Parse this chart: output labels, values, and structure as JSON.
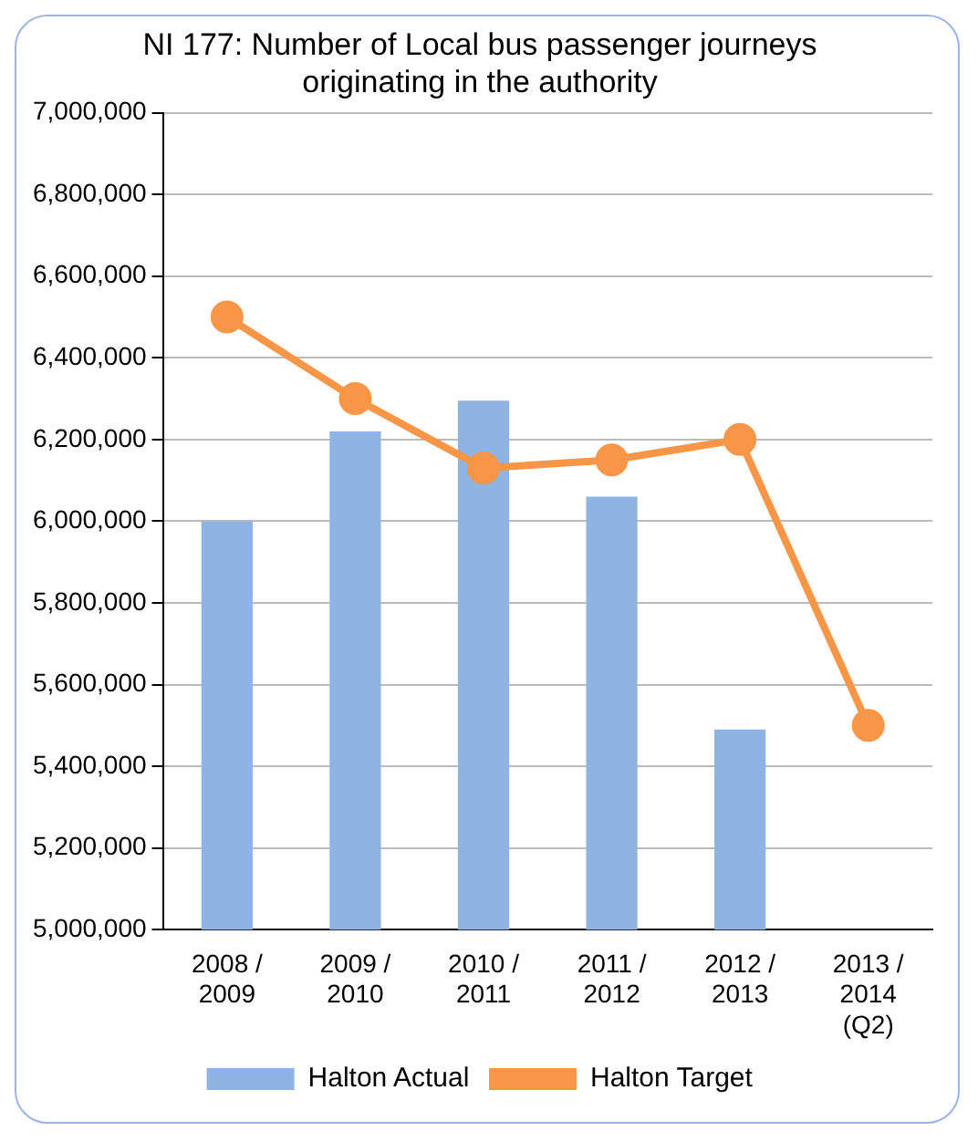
{
  "chart_data": {
    "type": "bar",
    "title": "NI 177: Number of Local bus passenger journeys originating in the authority",
    "categories": [
      "2008 /\n2009",
      "2009 /\n2010",
      "2010 /\n2011",
      "2011 /\n2012",
      "2012 /\n2013",
      "2013 /\n2014\n(Q2)"
    ],
    "series": [
      {
        "name": "Halton Actual",
        "color": "#8eb4e3",
        "values": [
          6000000,
          6220000,
          6295000,
          6060000,
          5490000,
          null
        ]
      },
      {
        "name": "Halton Target",
        "type": "line",
        "color": "#f79646",
        "values": [
          6500000,
          6300000,
          6130000,
          6150000,
          6200000,
          5500000
        ]
      }
    ],
    "ylim": [
      5000000,
      7000000
    ],
    "yticks": [
      {
        "value": 5000000,
        "label": "5,000,000"
      },
      {
        "value": 5200000,
        "label": "5,200,000"
      },
      {
        "value": 5400000,
        "label": "5,400,000"
      },
      {
        "value": 5600000,
        "label": "5,600,000"
      },
      {
        "value": 5800000,
        "label": "5,800,000"
      },
      {
        "value": 6000000,
        "label": "6,000,000"
      },
      {
        "value": 6200000,
        "label": "6,200,000"
      },
      {
        "value": 6400000,
        "label": "6,400,000"
      },
      {
        "value": 6600000,
        "label": "6,600,000"
      },
      {
        "value": 6800000,
        "label": "6,800,000"
      },
      {
        "value": 7000000,
        "label": "7,000,000"
      }
    ],
    "grid": "y",
    "legend": "bottom",
    "marker": "circle"
  }
}
